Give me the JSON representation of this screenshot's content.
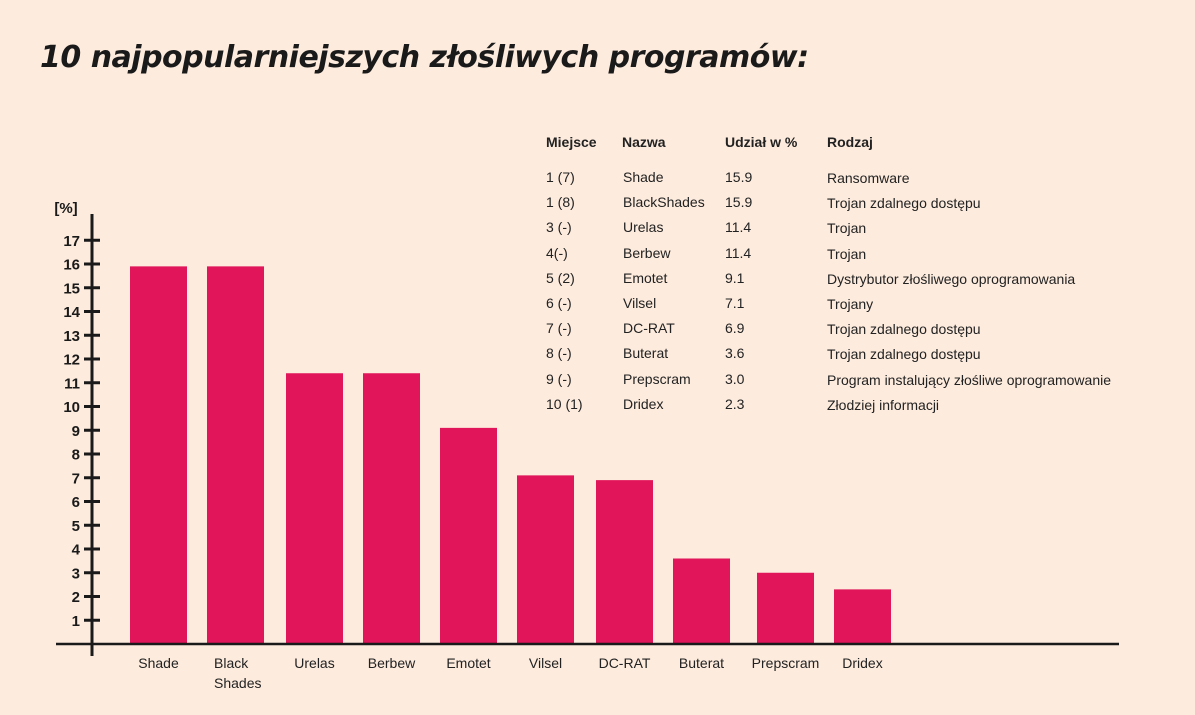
{
  "title": "10 najpopularniejszych złośliwych programów:",
  "colors": {
    "background": "#fdebdd",
    "bar": "#e0155a",
    "axis": "#1a1a1a"
  },
  "chart_data": {
    "type": "bar",
    "categories": [
      "Shade",
      "Black Shades",
      "Urelas",
      "Berbew",
      "Emotet",
      "Vilsel",
      "DC-RAT",
      "Buterat",
      "Prepscram",
      "Dridex"
    ],
    "category_lines": [
      [
        "Shade"
      ],
      [
        "Black",
        "Shades"
      ],
      [
        "Urelas"
      ],
      [
        "Berbew"
      ],
      [
        "Emotet"
      ],
      [
        "Vilsel"
      ],
      [
        "DC-RAT"
      ],
      [
        "Buterat"
      ],
      [
        "Prepscram"
      ],
      [
        "Dridex"
      ]
    ],
    "values": [
      15.9,
      15.9,
      11.4,
      11.4,
      9.1,
      7.1,
      6.9,
      3.6,
      3.0,
      2.3
    ],
    "ylabel": "[%]",
    "ylim": [
      0,
      17
    ],
    "yticks": [
      1,
      2,
      3,
      4,
      5,
      6,
      7,
      8,
      9,
      10,
      11,
      12,
      13,
      14,
      15,
      16,
      17
    ],
    "grid": false
  },
  "table": {
    "headers": [
      "Miejsce",
      "Nazwa",
      "Udział w %",
      "Rodzaj"
    ],
    "rows": [
      [
        "1 (7)",
        "Shade",
        "15.9",
        "Ransomware"
      ],
      [
        "1 (8)",
        "BlackShades",
        "15.9",
        "Trojan zdalnego dostępu"
      ],
      [
        "3 (-)",
        "Urelas",
        "11.4",
        "Trojan"
      ],
      [
        "4(-)",
        "Berbew",
        "11.4",
        "Trojan"
      ],
      [
        "5 (2)",
        "Emotet",
        "9.1",
        "Dystrybutor złośliwego oprogramowania"
      ],
      [
        "6 (-)",
        "Vilsel",
        "7.1",
        "Trojany"
      ],
      [
        "7 (-)",
        "DC-RAT",
        "6.9",
        "Trojan zdalnego dostępu"
      ],
      [
        "8 (-)",
        "Buterat",
        "3.6",
        "Trojan zdalnego dostępu"
      ],
      [
        "9 (-)",
        "Prepscram",
        "3.0",
        "Program instalujący złośliwe  oprogramowanie"
      ],
      [
        "10 (1)",
        "Dridex",
        "2.3",
        "Złodziej informacji"
      ]
    ]
  }
}
